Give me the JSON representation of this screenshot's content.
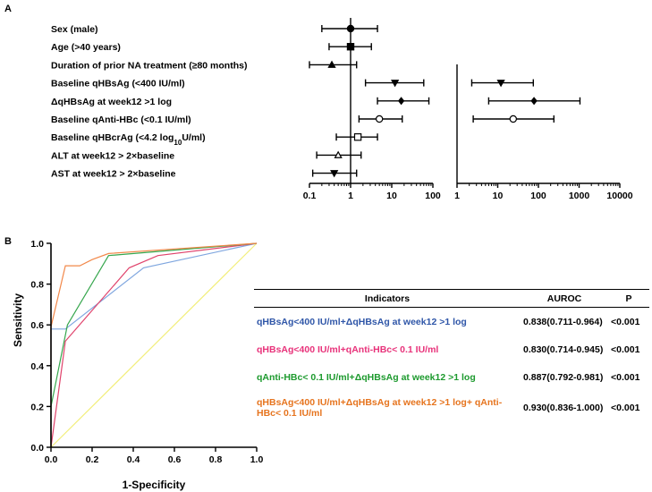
{
  "panels": {
    "a": "A",
    "b": "B"
  },
  "chart_data": [
    {
      "type": "scatter",
      "subtype": "forest_plot",
      "title": "",
      "xscale": "log",
      "left_panel": {
        "xlim": [
          0.1,
          100
        ],
        "xticks": [
          "0.1",
          "1",
          "10",
          "100"
        ],
        "reference_line": 1
      },
      "right_panel": {
        "xlim": [
          1,
          10000
        ],
        "xticks": [
          "1",
          "10",
          "100",
          "1000",
          "10000"
        ]
      },
      "rows": [
        {
          "label": "Sex (male)",
          "marker": "circle-filled",
          "est": 1.0,
          "lo": 0.2,
          "hi": 4.5
        },
        {
          "label": "Age (>40 years)",
          "marker": "square-filled",
          "est": 1.0,
          "lo": 0.3,
          "hi": 3.2
        },
        {
          "label": "Duration of prior NA treatment (≥80 months)",
          "marker": "triangle-up-filled",
          "est": 0.35,
          "lo": 0.1,
          "hi": 1.4
        },
        {
          "label": "Baseline qHBsAg (<400 IU/ml)",
          "marker": "triangle-down-filled",
          "est": 12,
          "lo": 2.3,
          "hi": 60,
          "right": {
            "est": 12,
            "lo": 2.3,
            "hi": 75
          }
        },
        {
          "label": "ΔqHBsAg at week12 >1 log",
          "marker": "diamond-filled",
          "est": 17,
          "lo": 4.5,
          "hi": 80,
          "right": {
            "est": 78,
            "lo": 6,
            "hi": 1050
          }
        },
        {
          "label": "Baseline qAnti-HBc (<0.1 IU/ml)",
          "marker": "circle-open",
          "est": 5,
          "lo": 1.6,
          "hi": 18,
          "right": {
            "est": 24,
            "lo": 2.5,
            "hi": 240
          }
        },
        {
          "label": "Baseline qHBcrAg (<4.2 log10U/ml)",
          "marker": "square-open",
          "est": 1.5,
          "lo": 0.45,
          "hi": 4.5
        },
        {
          "label": "ALT at week12 > 2×baseline",
          "marker": "triangle-up-open",
          "est": 0.5,
          "lo": 0.15,
          "hi": 1.8
        },
        {
          "label": "AST at week12 > 2×baseline",
          "marker": "triangle-down-filled",
          "est": 0.4,
          "lo": 0.12,
          "hi": 1.4
        }
      ],
      "label_parts": {
        "crag_prefix": "Baseline qHBcrAg (<4.2 log",
        "crag_sub": "10",
        "crag_suffix": "U/ml)"
      }
    },
    {
      "type": "line",
      "subtype": "roc",
      "title": "",
      "xlabel": "1-Specificity",
      "ylabel": "Sensitivity",
      "xlim": [
        0,
        1.0
      ],
      "ylim": [
        0,
        1.0
      ],
      "xticks": [
        "0.0",
        "0.2",
        "0.4",
        "0.6",
        "0.8",
        "1.0"
      ],
      "yticks": [
        "0.0",
        "0.2",
        "0.4",
        "0.6",
        "0.8",
        "1.0"
      ],
      "reference_line": {
        "from": [
          0,
          0
        ],
        "to": [
          1,
          1
        ],
        "color": "#f2ee7a"
      },
      "series": [
        {
          "name": "qHBsAg<400 IU/ml+ΔqHBsAg at week12 >1 log",
          "color": "#7fa6df",
          "points": [
            [
              0,
              0
            ],
            [
              0,
              0.58
            ],
            [
              0.07,
              0.58
            ],
            [
              0.45,
              0.88
            ],
            [
              1,
              1
            ]
          ]
        },
        {
          "name": "qHBsAg<400 IU/ml+qAnti-HBc< 0.1 IU/ml",
          "color": "#e0436c",
          "points": [
            [
              0,
              0
            ],
            [
              0.07,
              0.52
            ],
            [
              0.38,
              0.88
            ],
            [
              0.52,
              0.94
            ],
            [
              1,
              1
            ]
          ]
        },
        {
          "name": "qAnti-HBc< 0.1 IU/ml+ΔqHBsAg at week12 >1 log",
          "color": "#35a64c",
          "points": [
            [
              0,
              0
            ],
            [
              0,
              0.2
            ],
            [
              0.08,
              0.6
            ],
            [
              0.28,
              0.94
            ],
            [
              1,
              1
            ]
          ]
        },
        {
          "name": "qHBsAg<400 IU/ml+ΔqHBsAg at week12 >1 log+ qAnti-HBc< 0.1 IU/ml",
          "color": "#f2884a",
          "points": [
            [
              0,
              0
            ],
            [
              0,
              0.59
            ],
            [
              0.07,
              0.89
            ],
            [
              0.14,
              0.89
            ],
            [
              0.2,
              0.92
            ],
            [
              0.28,
              0.95
            ],
            [
              1,
              1
            ]
          ]
        }
      ]
    }
  ],
  "table": {
    "headers": {
      "indicators": "Indicators",
      "auroc": "AUROC",
      "p": "P"
    },
    "rows": [
      {
        "indicator": "qHBsAg<400 IU/ml+ΔqHBsAg at week12 >1 log",
        "color": "#2f56a8",
        "auroc": "0.838(0.711-0.964)",
        "p": "<0.001"
      },
      {
        "indicator": "qHBsAg<400 IU/ml+qAnti-HBc< 0.1 IU/ml",
        "color": "#e8327a",
        "auroc": "0.830(0.714-0.945)",
        "p": "<0.001"
      },
      {
        "indicator": "qAnti-HBc< 0.1 IU/ml+ΔqHBsAg at week12 >1 log",
        "color": "#1d9a2e",
        "auroc": "0.887(0.792-0.981)",
        "p": "<0.001"
      },
      {
        "indicator": "qHBsAg<400 IU/ml+ΔqHBsAg at week12 >1 log+ qAnti-HBc< 0.1 IU/ml",
        "color": "#e6741e",
        "auroc": "0.930(0.836-1.000)",
        "p": "<0.001"
      }
    ]
  }
}
